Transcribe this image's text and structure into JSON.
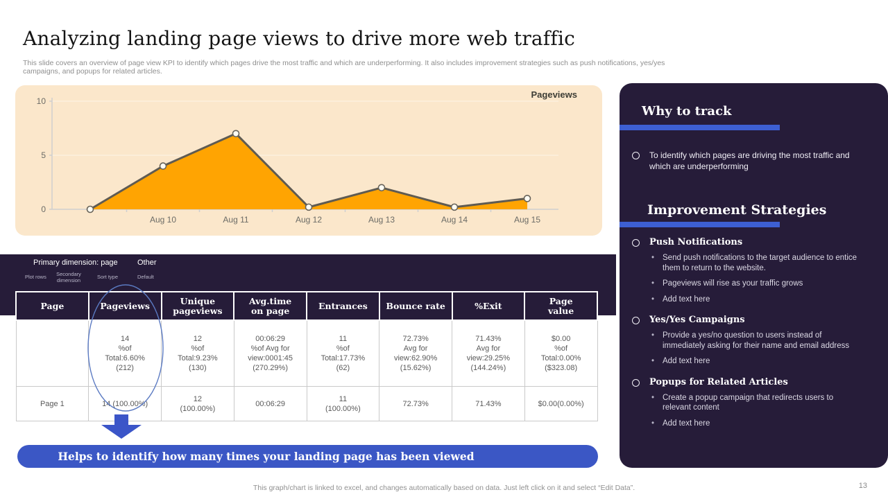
{
  "slide": {
    "title": "Analyzing landing page views to drive more web traffic",
    "subtitle": "This slide covers an overview of page view KPI to identify which pages drive the most traffic and which are underperforming. It also includes improvement strategies such as push notifications, yes/yes\ncampaigns, and popups for related articles.",
    "footer_note": "This graph/chart is linked to excel, and changes automatically based on data. Just left click on it and select “Edit Data”.",
    "page_number": "13"
  },
  "chart_data": {
    "type": "area",
    "legend": "Pageviews",
    "x": [
      "",
      "Aug 10",
      "Aug 11",
      "Aug 12",
      "Aug 13",
      "Aug 14",
      "Aug 15"
    ],
    "values": [
      0,
      4,
      7,
      0.2,
      2,
      0.2,
      1
    ],
    "ylim": [
      0,
      10
    ],
    "yticks": [
      0,
      5,
      10
    ],
    "grid": "horizontal",
    "legend_position": "top-right",
    "colors": {
      "fill": "#FFA402",
      "line": "#5F5B52",
      "panel": "#FBE7CB",
      "marker": "#FFFDF4"
    }
  },
  "toolbar": {
    "primary_dimension": "Primary dimension: page",
    "other": "Other",
    "items": [
      "Plot rows",
      "Secondary dimension",
      "Sort type",
      "Default"
    ]
  },
  "table": {
    "headers": [
      "Page",
      "Pageviews",
      "Unique\npageviews",
      "Avg.time\non page",
      "Entrances",
      "Bounce rate",
      "%Exit",
      "Page\nvalue"
    ],
    "rows": [
      [
        "",
        "14\n%of\nTotal:6.60%\n(212)",
        "12\n%of\nTotal:9.23%\n(130)",
        "00:06:29\n%of Avg for\nview:0001:45\n(270.29%)",
        "11\n%of\nTotal:17.73%\n(62)",
        "72.73%\nAvg for\nview:62.90%\n(15.62%)",
        "71.43%\nAvg for\nview:29.25%\n(144.24%)",
        "$0.00\n%of\nTotal:0.00%\n($323.08)"
      ],
      [
        "Page 1",
        "14 (100.00%)",
        "12\n(100.00%)",
        "00:06:29",
        "11\n(100.00%)",
        "72.73%",
        "71.43%",
        "$0.00(0.00%)"
      ]
    ]
  },
  "banner": {
    "text": "Helps to identify how many times your landing page has been viewed"
  },
  "sidebar": {
    "why_to_track": {
      "heading": "Why to track",
      "bullets": [
        "To identify which pages are driving the most traffic and which are underperforming"
      ]
    },
    "improvement": {
      "heading": "Improvement Strategies",
      "strategies": [
        {
          "title": "Push Notifications",
          "points": [
            "Send push notifications to the target audience to entice them to return to the website.",
            "Pageviews will rise as your traffic grows",
            "Add text here"
          ]
        },
        {
          "title": "Yes/Yes Campaigns",
          "points": [
            "Provide a yes/no question to users instead of immediately asking for their name and email address",
            "Add text here"
          ]
        },
        {
          "title": "Popups for Related Articles",
          "points": [
            "Create a popup campaign that redirects users to relevant content",
            "Add text here"
          ]
        }
      ]
    }
  },
  "colors": {
    "accent_blue": "#3D5BC8",
    "dark_purple": "#261C39",
    "panel_peach": "#FBE7CB",
    "orange": "#FFA402",
    "banner_blue": "#3B57C5",
    "annotation_blue": "#5B7AC2"
  }
}
